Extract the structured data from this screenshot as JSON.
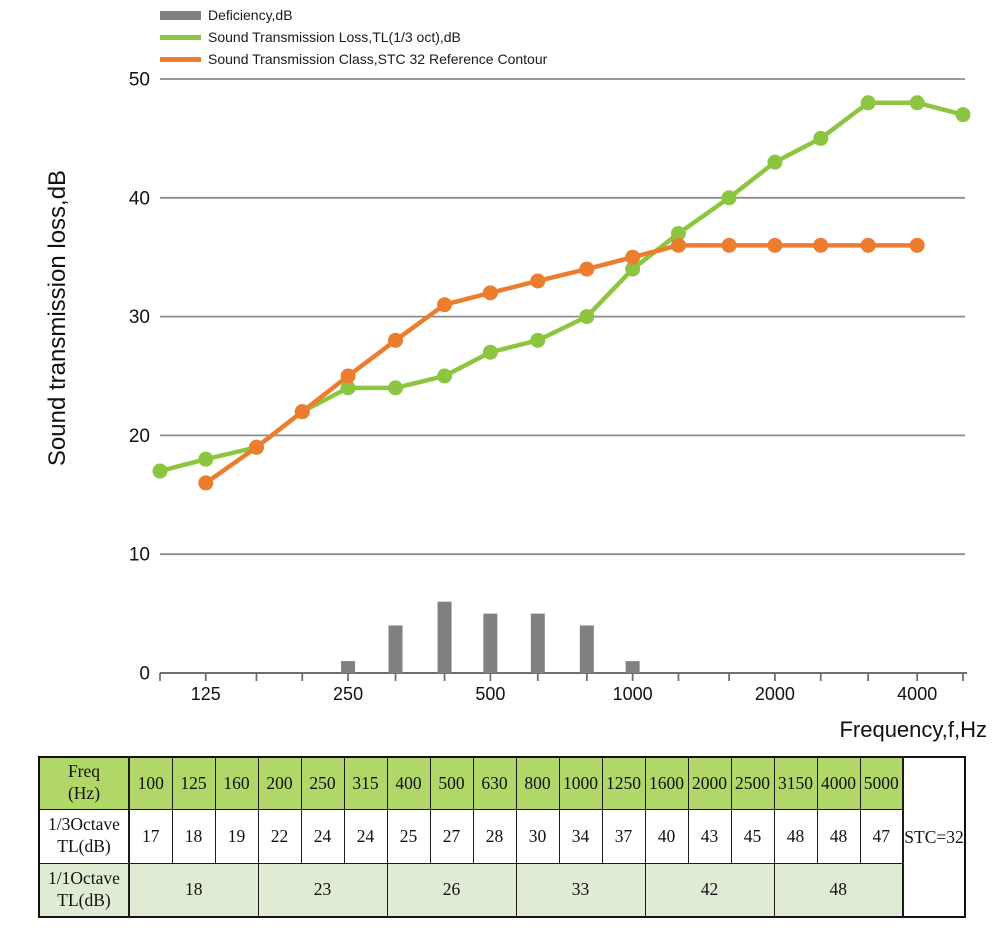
{
  "legend": {
    "items": [
      {
        "label": "Deficiency,dB",
        "swatch": "bar",
        "color": "#808080"
      },
      {
        "label": "Sound Transmission Loss,TL(1/3 oct),dB",
        "swatch": "line",
        "color": "#8CC640"
      },
      {
        "label": "Sound Transmission Class,STC 32 Reference Contour",
        "swatch": "line",
        "color": "#EC7D2E"
      }
    ]
  },
  "chart_data": {
    "type": "line+bar",
    "x_scale": "log",
    "title": "",
    "xlabel": "Frequency,f,Hz",
    "ylabel": "Sound transmission loss,dB",
    "ylim": [
      0,
      50
    ],
    "yticks": [
      0,
      10,
      20,
      30,
      40,
      50
    ],
    "x_ticks_all": [
      100,
      125,
      160,
      200,
      250,
      315,
      400,
      500,
      630,
      800,
      1000,
      1250,
      1600,
      2000,
      2500,
      3150,
      4000,
      5000
    ],
    "x_labeled_ticks": [
      125,
      250,
      500,
      1000,
      2000,
      4000
    ],
    "grid": "horizontal",
    "legend_position": "top-left",
    "series": [
      {
        "name": "Deficiency,dB",
        "type": "bar",
        "color": "#808080",
        "x": [
          250,
          315,
          400,
          500,
          630,
          800,
          1000
        ],
        "values": [
          1,
          4,
          6,
          5,
          5,
          4,
          1
        ]
      },
      {
        "name": "Sound Transmission Loss,TL(1/3 oct),dB",
        "type": "line",
        "color": "#8CC640",
        "x": [
          100,
          125,
          160,
          200,
          250,
          315,
          400,
          500,
          630,
          800,
          1000,
          1250,
          1600,
          2000,
          2500,
          3150,
          4000,
          5000
        ],
        "values": [
          17,
          18,
          19,
          22,
          24,
          24,
          25,
          27,
          28,
          30,
          34,
          37,
          40,
          43,
          45,
          48,
          48,
          47
        ]
      },
      {
        "name": "Sound Transmission Class,STC 32 Reference Contour",
        "type": "line",
        "color": "#EC7D2E",
        "x": [
          125,
          160,
          200,
          250,
          315,
          400,
          500,
          630,
          800,
          1000,
          1250,
          1600,
          2000,
          2500,
          3150,
          4000
        ],
        "values": [
          16,
          19,
          22,
          25,
          28,
          31,
          32,
          33,
          34,
          35,
          36,
          36,
          36,
          36,
          36,
          36
        ]
      }
    ]
  },
  "table": {
    "row_headers": [
      "Freq\n(Hz)",
      "1/3Octave\nTL(dB)",
      "1/1Octave\nTL(dB)"
    ],
    "frequencies": [
      "100",
      "125",
      "160",
      "200",
      "250",
      "315",
      "400",
      "500",
      "630",
      "800",
      "1000",
      "1250",
      "1600",
      "2000",
      "2500",
      "3150",
      "4000",
      "5000"
    ],
    "third_octave_tl": [
      "17",
      "18",
      "19",
      "22",
      "24",
      "24",
      "25",
      "27",
      "28",
      "30",
      "34",
      "37",
      "40",
      "43",
      "45",
      "48",
      "48",
      "47"
    ],
    "octave_tl": [
      {
        "label": "18",
        "span": 3
      },
      {
        "label": "23",
        "span": 3
      },
      {
        "label": "26",
        "span": 3
      },
      {
        "label": "33",
        "span": 3
      },
      {
        "label": "42",
        "span": 3
      },
      {
        "label": "48",
        "span": 3
      }
    ],
    "stc_label": "STC=32",
    "colors": {
      "header_bg": "#B1D768",
      "octave_bg": "#DFECD3"
    }
  }
}
